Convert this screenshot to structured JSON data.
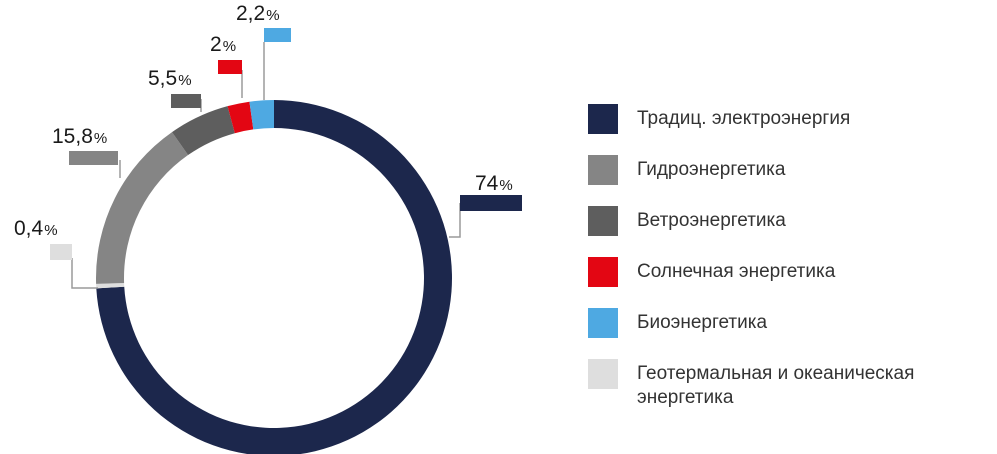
{
  "chart_data": {
    "type": "pie",
    "donut": true,
    "percent_sign": "%",
    "slices": [
      {
        "label": "Традиц. электроэнергия",
        "value": 74,
        "value_text": "74",
        "color": "#1c274c"
      },
      {
        "label": "Гидроэнергетика",
        "value": 15.8,
        "value_text": "15,8",
        "color": "#858585"
      },
      {
        "label": "Ветроэнергетика",
        "value": 5.5,
        "value_text": "5,5",
        "color": "#5e5e5e"
      },
      {
        "label": "Солнечная энергетика",
        "value": 2,
        "value_text": "2",
        "color": "#e30613"
      },
      {
        "label": "Биоэнергетика",
        "value": 2.2,
        "value_text": "2,2",
        "color": "#4ea9e2"
      },
      {
        "label": "Геотермальная и океаническая энергетика",
        "label_lines": [
          "Геотермальная и океаническая",
          "энергетика"
        ],
        "value": 0.4,
        "value_text": "0,4",
        "color": "#dedede"
      }
    ],
    "legend_position": "right"
  }
}
